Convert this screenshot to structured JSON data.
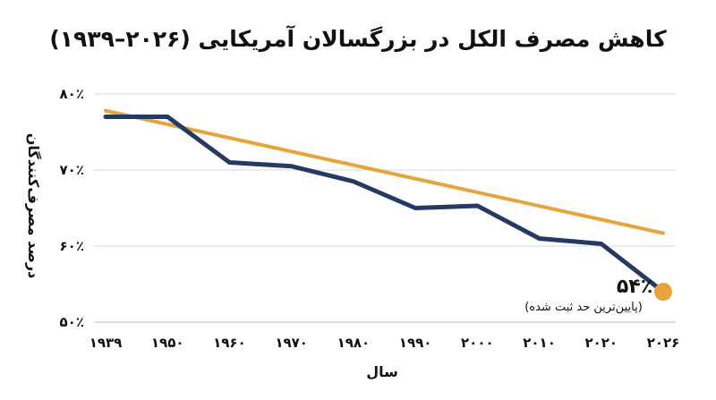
{
  "chart_data": {
    "type": "line",
    "title": "کاهش مصرف الکل در بزرگسالان آمریکایی (۲۰۲۶–۱۹۳۹)",
    "xlabel": "سال",
    "ylabel": "درصد مصرف‌کنندگان",
    "x": [
      1939,
      1950,
      1960,
      1970,
      1980,
      1990,
      2000,
      2010,
      2020,
      2026
    ],
    "x_tick_labels": [
      "۱۹۳۹",
      "۱۹۵۰",
      "۱۹۶۰",
      "۱۹۷۰",
      "۱۹۸۰",
      "۱۹۹۰",
      "۲۰۰۰",
      "۲۰۱۰",
      "۲۰۲۰",
      "۲۰۲۶"
    ],
    "y_ticks": [
      50,
      60,
      70,
      80
    ],
    "y_tick_labels": [
      "۵۰٪",
      "۶۰٪",
      "۷۰٪",
      "۸۰٪"
    ],
    "ylim": [
      50,
      80
    ],
    "grid": true,
    "legend": "none",
    "series": [
      {
        "values": [
          77,
          77,
          71,
          70.5,
          68.5,
          65,
          65.3,
          61,
          60.3,
          54
        ],
        "color": "#253a63"
      },
      {
        "type": "trend",
        "x": [
          1939,
          2026
        ],
        "values": [
          77.8,
          61.7
        ],
        "color": "#e8a33c"
      }
    ],
    "highlight_point": {
      "x": 2026,
      "y": 54,
      "color": "#e8a33c"
    },
    "annotations": [
      {
        "text": "۵۴٪"
      },
      {
        "text": "(پایین‌ترین حد ثبت شده)"
      }
    ]
  }
}
